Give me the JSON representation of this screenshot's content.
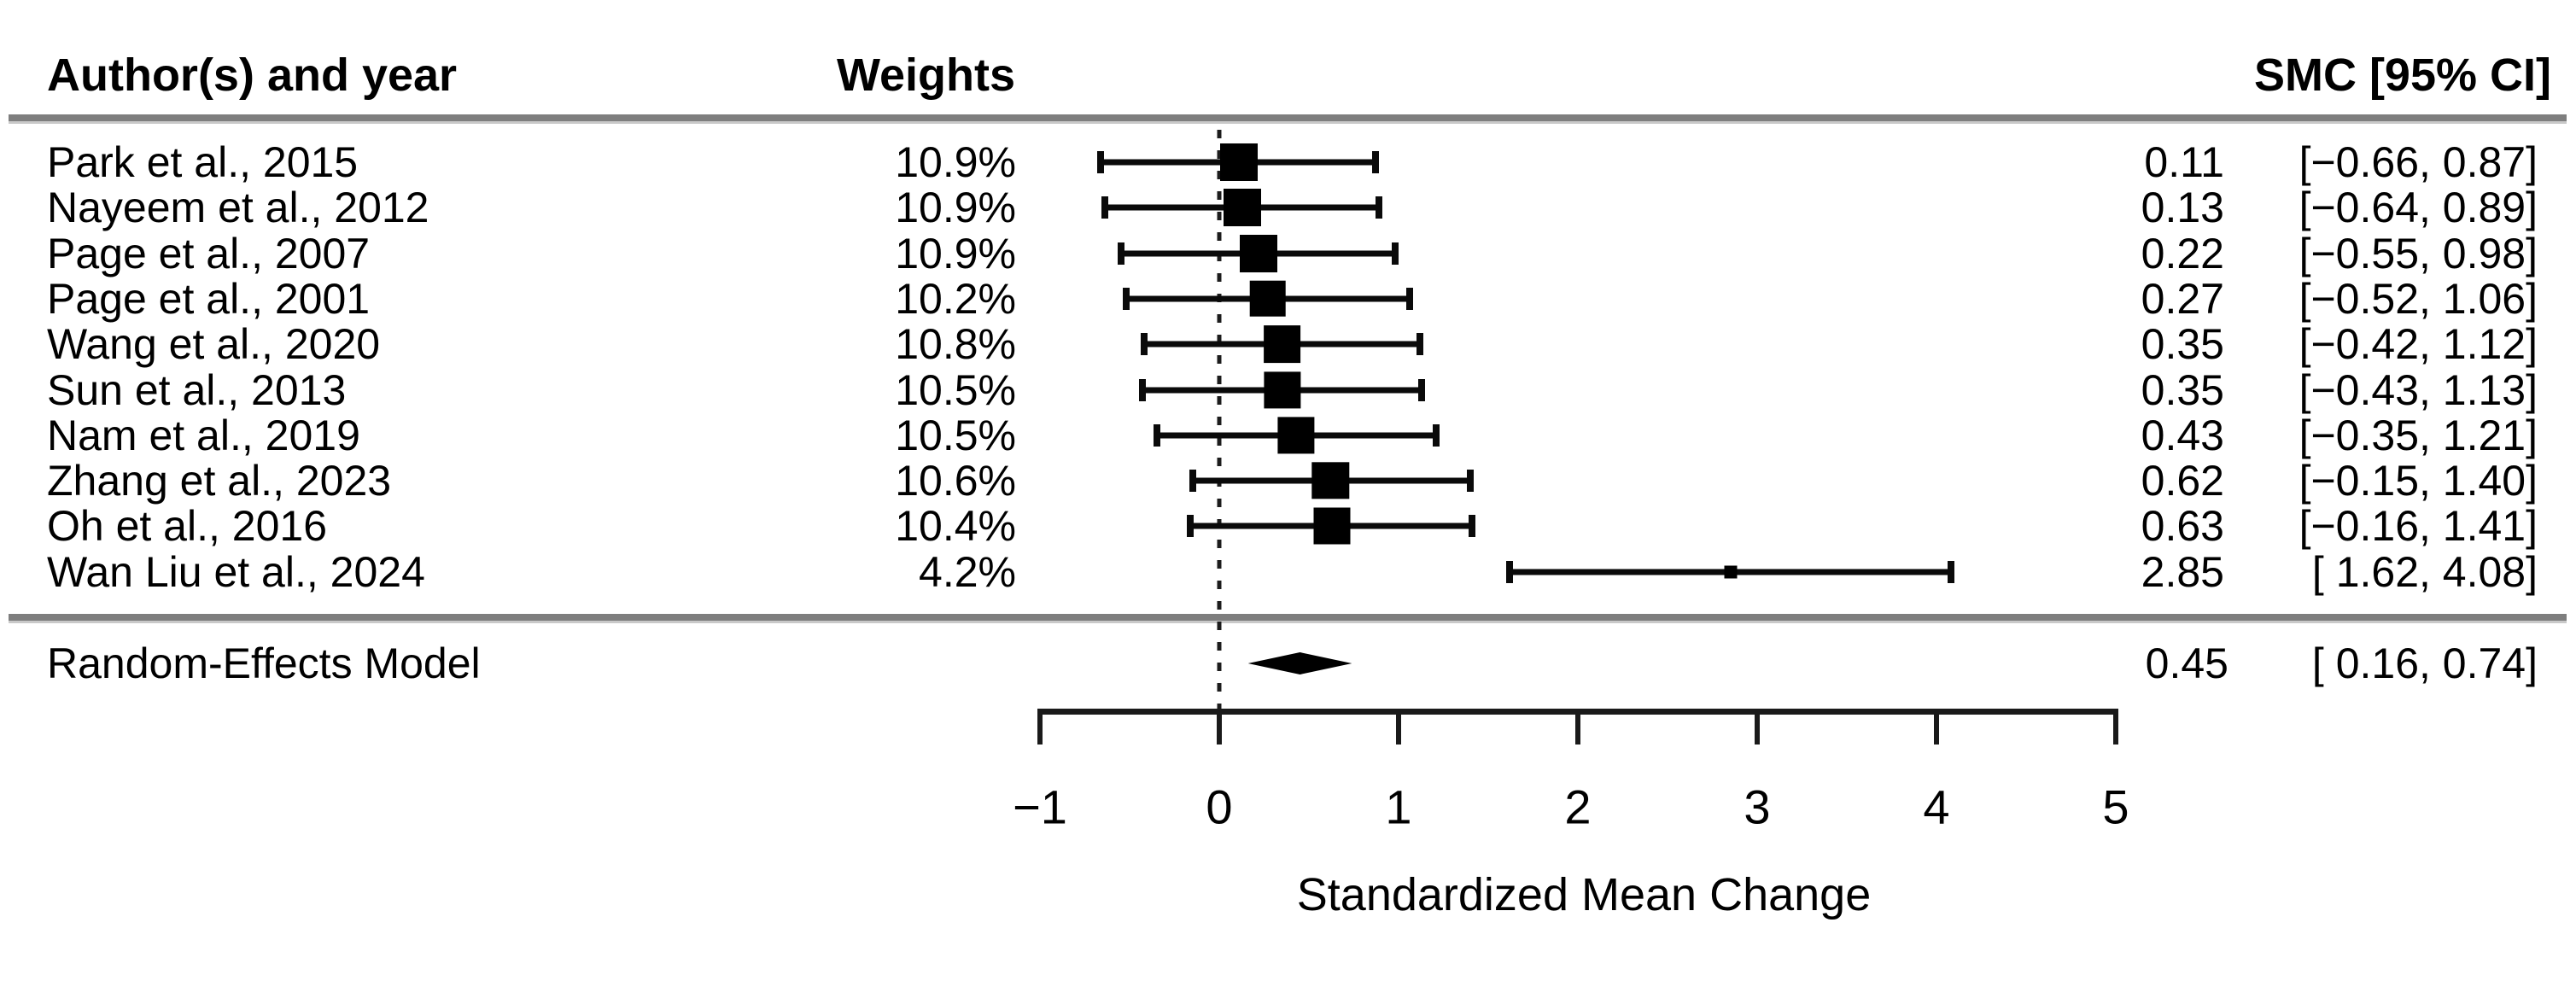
{
  "colors": {
    "marker": "#000000",
    "rule_gray": "#7e7e7e",
    "text": "#000000",
    "background": "#ffffff"
  },
  "chart_data": {
    "type": "forest",
    "columns": {
      "authors": "Author(s) and year",
      "weights": "Weights",
      "smc": "SMC [95% CI]"
    },
    "studies": [
      {
        "author": "Park et al., 2015",
        "weight": "10.9%",
        "weight_value": 10.9,
        "est": 0.11,
        "lo": -0.66,
        "hi": 0.87,
        "est_text": "0.11",
        "ci_text": "[−0.66, 0.87]"
      },
      {
        "author": "Nayeem et al., 2012",
        "weight": "10.9%",
        "weight_value": 10.9,
        "est": 0.13,
        "lo": -0.64,
        "hi": 0.89,
        "est_text": "0.13",
        "ci_text": "[−0.64, 0.89]"
      },
      {
        "author": "Page et al., 2007",
        "weight": "10.9%",
        "weight_value": 10.9,
        "est": 0.22,
        "lo": -0.55,
        "hi": 0.98,
        "est_text": "0.22",
        "ci_text": "[−0.55, 0.98]"
      },
      {
        "author": "Page et al., 2001",
        "weight": "10.2%",
        "weight_value": 10.2,
        "est": 0.27,
        "lo": -0.52,
        "hi": 1.06,
        "est_text": "0.27",
        "ci_text": "[−0.52, 1.06]"
      },
      {
        "author": "Wang et al., 2020",
        "weight": "10.8%",
        "weight_value": 10.8,
        "est": 0.35,
        "lo": -0.42,
        "hi": 1.12,
        "est_text": "0.35",
        "ci_text": "[−0.42, 1.12]"
      },
      {
        "author": "Sun et al., 2013",
        "weight": "10.5%",
        "weight_value": 10.5,
        "est": 0.35,
        "lo": -0.43,
        "hi": 1.13,
        "est_text": "0.35",
        "ci_text": "[−0.43, 1.13]"
      },
      {
        "author": "Nam et al., 2019",
        "weight": "10.5%",
        "weight_value": 10.5,
        "est": 0.43,
        "lo": -0.35,
        "hi": 1.21,
        "est_text": "0.43",
        "ci_text": "[−0.35, 1.21]"
      },
      {
        "author": "Zhang et al., 2023",
        "weight": "10.6%",
        "weight_value": 10.6,
        "est": 0.62,
        "lo": -0.15,
        "hi": 1.4,
        "est_text": "0.62",
        "ci_text": "[−0.15, 1.40]"
      },
      {
        "author": "Oh et al., 2016",
        "weight": "10.4%",
        "weight_value": 10.4,
        "est": 0.63,
        "lo": -0.16,
        "hi": 1.41,
        "est_text": "0.63",
        "ci_text": "[−0.16, 1.41]"
      },
      {
        "author": "Wan Liu et al., 2024",
        "weight": "4.2%",
        "weight_value": 4.2,
        "est": 2.85,
        "lo": 1.62,
        "hi": 4.08,
        "est_text": "2.85",
        "ci_text": "[ 1.62, 4.08]"
      }
    ],
    "summary": {
      "label": "Random-Effects Model",
      "est": 0.45,
      "lo": 0.16,
      "hi": 0.74,
      "est_text": "0.45",
      "ci_text": "[ 0.16, 0.74]"
    },
    "x_axis": {
      "range": [
        -1,
        5
      ],
      "ticks": [
        {
          "v": -1,
          "label": "−1"
        },
        {
          "v": 0,
          "label": "0"
        },
        {
          "v": 1,
          "label": "1"
        },
        {
          "v": 2,
          "label": "2"
        },
        {
          "v": 3,
          "label": "3"
        },
        {
          "v": 4,
          "label": "4"
        },
        {
          "v": 5,
          "label": "5"
        }
      ],
      "reference_line": 0,
      "label": "Standardized Mean Change"
    }
  }
}
